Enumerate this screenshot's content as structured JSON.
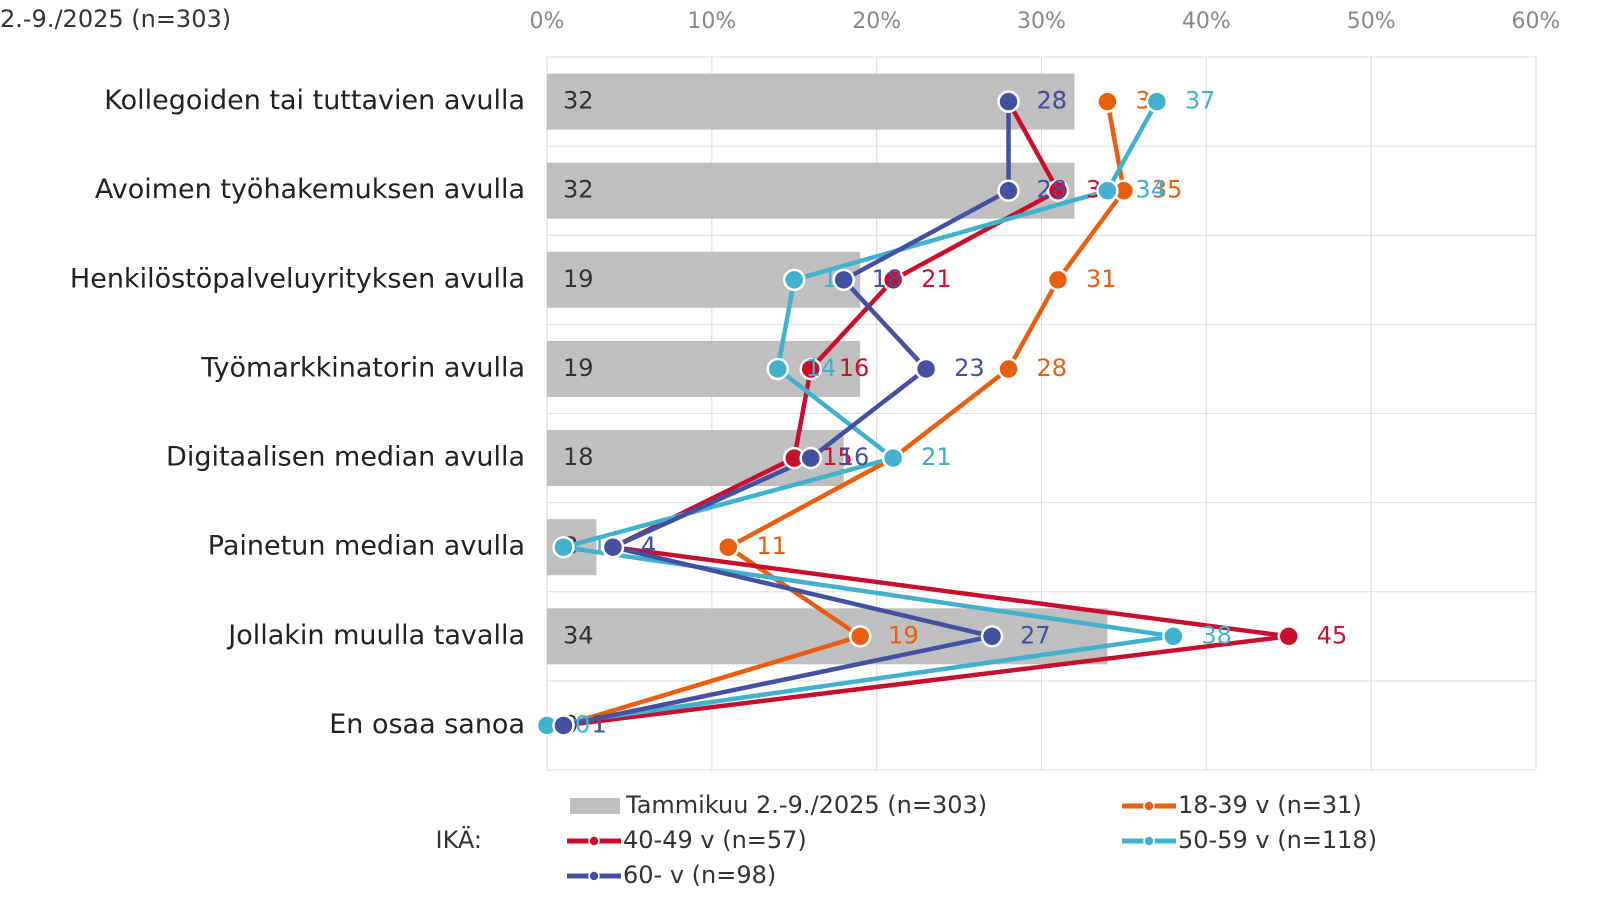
{
  "chart_data": {
    "type": "bar",
    "orientation": "horizontal",
    "title": "2.-9./2025 (n=303)",
    "categories": [
      "Kollegoiden tai tuttavien avulla",
      "Avoimen työhakemuksen avulla",
      "Henkilöstöpalveluyrityksen avulla",
      "Työmarkkinatorin avulla",
      "Digitaalisen median avulla",
      "Painetun median avulla",
      "Jollakin muulla tavalla",
      "En osaa sanoa"
    ],
    "series": [
      {
        "name": "Tammikuu 2.-9./2025 (n=303)",
        "type": "bar",
        "color": "#bfbfbf",
        "values": [
          32,
          32,
          19,
          19,
          18,
          3,
          34,
          0
        ]
      },
      {
        "name": "18-39 v (n=31)",
        "type": "line",
        "color": "#e8600f",
        "values": [
          34,
          35,
          31,
          28,
          21,
          11,
          19,
          1
        ]
      },
      {
        "name": "40-49 v (n=57)",
        "type": "line",
        "color": "#c8102e",
        "values": [
          28,
          31,
          21,
          16,
          15,
          4,
          45,
          1
        ]
      },
      {
        "name": "50-59 v (n=118)",
        "type": "line",
        "color": "#41b1cd",
        "values": [
          37,
          34,
          15,
          14,
          21,
          1,
          38,
          0
        ]
      },
      {
        "name": "60- v (n=98)",
        "type": "line",
        "color": "#4451a3",
        "values": [
          28,
          28,
          18,
          23,
          16,
          4,
          27,
          1
        ]
      }
    ],
    "legend_title": "IKÄ:",
    "xlim": [
      0,
      60
    ],
    "xticks": [
      {
        "value": 0,
        "label": "0%"
      },
      {
        "value": 10,
        "label": "10%"
      },
      {
        "value": 20,
        "label": "20%"
      },
      {
        "value": 30,
        "label": "30%"
      },
      {
        "value": 40,
        "label": "40%"
      },
      {
        "value": 50,
        "label": "50%"
      },
      {
        "value": 60,
        "label": "60%"
      }
    ],
    "grid": true
  }
}
